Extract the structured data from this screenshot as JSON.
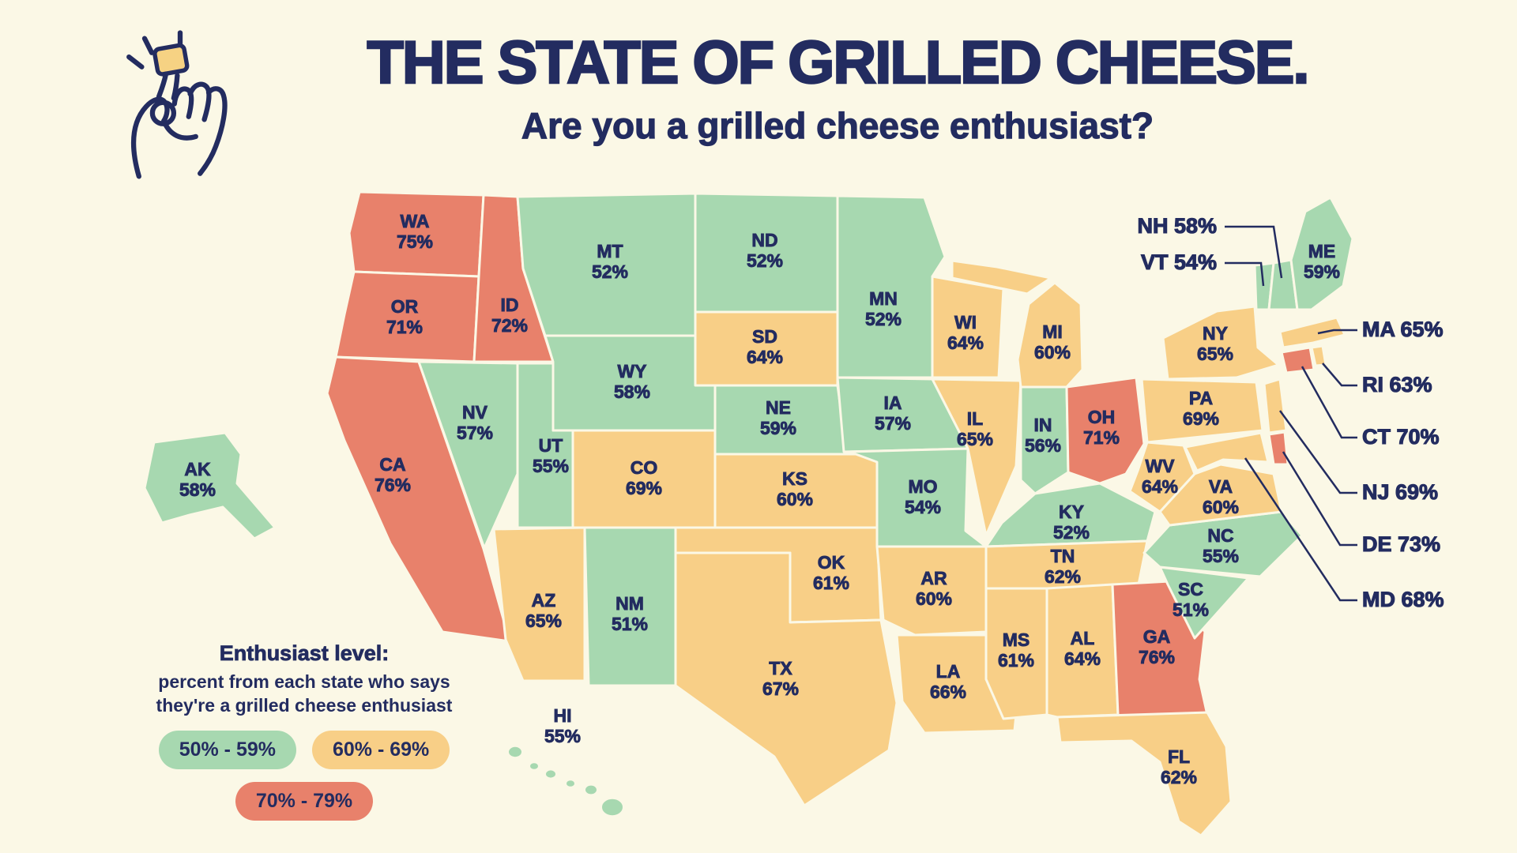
{
  "header": {
    "title": "THE STATE OF GRILLED CHEESE.",
    "subtitle": "Are you a grilled cheese enthusiast?",
    "icon": "hand-holding-grilled-cheese-icon"
  },
  "legend": {
    "title": "Enthusiast level:",
    "description_line1": "percent from each state who says",
    "description_line2": "they're a grilled cheese enthusiast"
  },
  "chart_data": {
    "type": "choropleth",
    "region": "United States",
    "title": "THE STATE OF GRILLED CHEESE.",
    "question": "Are you a grilled cheese enthusiast?",
    "value_description": "percent from each state who says they're a grilled cheese enthusiast",
    "unit": "%",
    "bins": [
      {
        "label": "50% - 59%",
        "min": 50,
        "max": 59,
        "color": "#A7D8B0"
      },
      {
        "label": "60% - 69%",
        "min": 60,
        "max": 69,
        "color": "#F8CF87"
      },
      {
        "label": "70% - 79%",
        "min": 70,
        "max": 79,
        "color": "#E8816B"
      }
    ],
    "states": [
      {
        "abbr": "WA",
        "value": 75
      },
      {
        "abbr": "OR",
        "value": 71
      },
      {
        "abbr": "CA",
        "value": 76
      },
      {
        "abbr": "ID",
        "value": 72
      },
      {
        "abbr": "NV",
        "value": 57
      },
      {
        "abbr": "UT",
        "value": 55
      },
      {
        "abbr": "AZ",
        "value": 65
      },
      {
        "abbr": "NM",
        "value": 51
      },
      {
        "abbr": "AK",
        "value": 58
      },
      {
        "abbr": "HI",
        "value": 55
      },
      {
        "abbr": "MT",
        "value": 52
      },
      {
        "abbr": "WY",
        "value": 58
      },
      {
        "abbr": "CO",
        "value": 69
      },
      {
        "abbr": "ND",
        "value": 52
      },
      {
        "abbr": "SD",
        "value": 64
      },
      {
        "abbr": "NE",
        "value": 59
      },
      {
        "abbr": "KS",
        "value": 60
      },
      {
        "abbr": "OK",
        "value": 61
      },
      {
        "abbr": "TX",
        "value": 67
      },
      {
        "abbr": "MN",
        "value": 52
      },
      {
        "abbr": "IA",
        "value": 57
      },
      {
        "abbr": "MO",
        "value": 54
      },
      {
        "abbr": "AR",
        "value": 60
      },
      {
        "abbr": "LA",
        "value": 66
      },
      {
        "abbr": "WI",
        "value": 64
      },
      {
        "abbr": "IL",
        "value": 65
      },
      {
        "abbr": "MI",
        "value": 60
      },
      {
        "abbr": "IN",
        "value": 56
      },
      {
        "abbr": "OH",
        "value": 71
      },
      {
        "abbr": "KY",
        "value": 52
      },
      {
        "abbr": "TN",
        "value": 62
      },
      {
        "abbr": "MS",
        "value": 61
      },
      {
        "abbr": "AL",
        "value": 64
      },
      {
        "abbr": "GA",
        "value": 76
      },
      {
        "abbr": "FL",
        "value": 62
      },
      {
        "abbr": "SC",
        "value": 51
      },
      {
        "abbr": "NC",
        "value": 55
      },
      {
        "abbr": "VA",
        "value": 60
      },
      {
        "abbr": "WV",
        "value": 64
      },
      {
        "abbr": "PA",
        "value": 69
      },
      {
        "abbr": "NY",
        "value": 65
      },
      {
        "abbr": "NJ",
        "value": 69
      },
      {
        "abbr": "DE",
        "value": 73
      },
      {
        "abbr": "MD",
        "value": 68
      },
      {
        "abbr": "CT",
        "value": 70
      },
      {
        "abbr": "RI",
        "value": 63
      },
      {
        "abbr": "MA",
        "value": 65
      },
      {
        "abbr": "VT",
        "value": 54
      },
      {
        "abbr": "NH",
        "value": 58
      },
      {
        "abbr": "ME",
        "value": 59
      }
    ]
  },
  "colors": {
    "background": "#FBF8E6",
    "text_navy": "#232C60",
    "state_border": "#FBF8E6",
    "callout_line": "#232C60",
    "cheese_yellow": "#F6D283"
  }
}
